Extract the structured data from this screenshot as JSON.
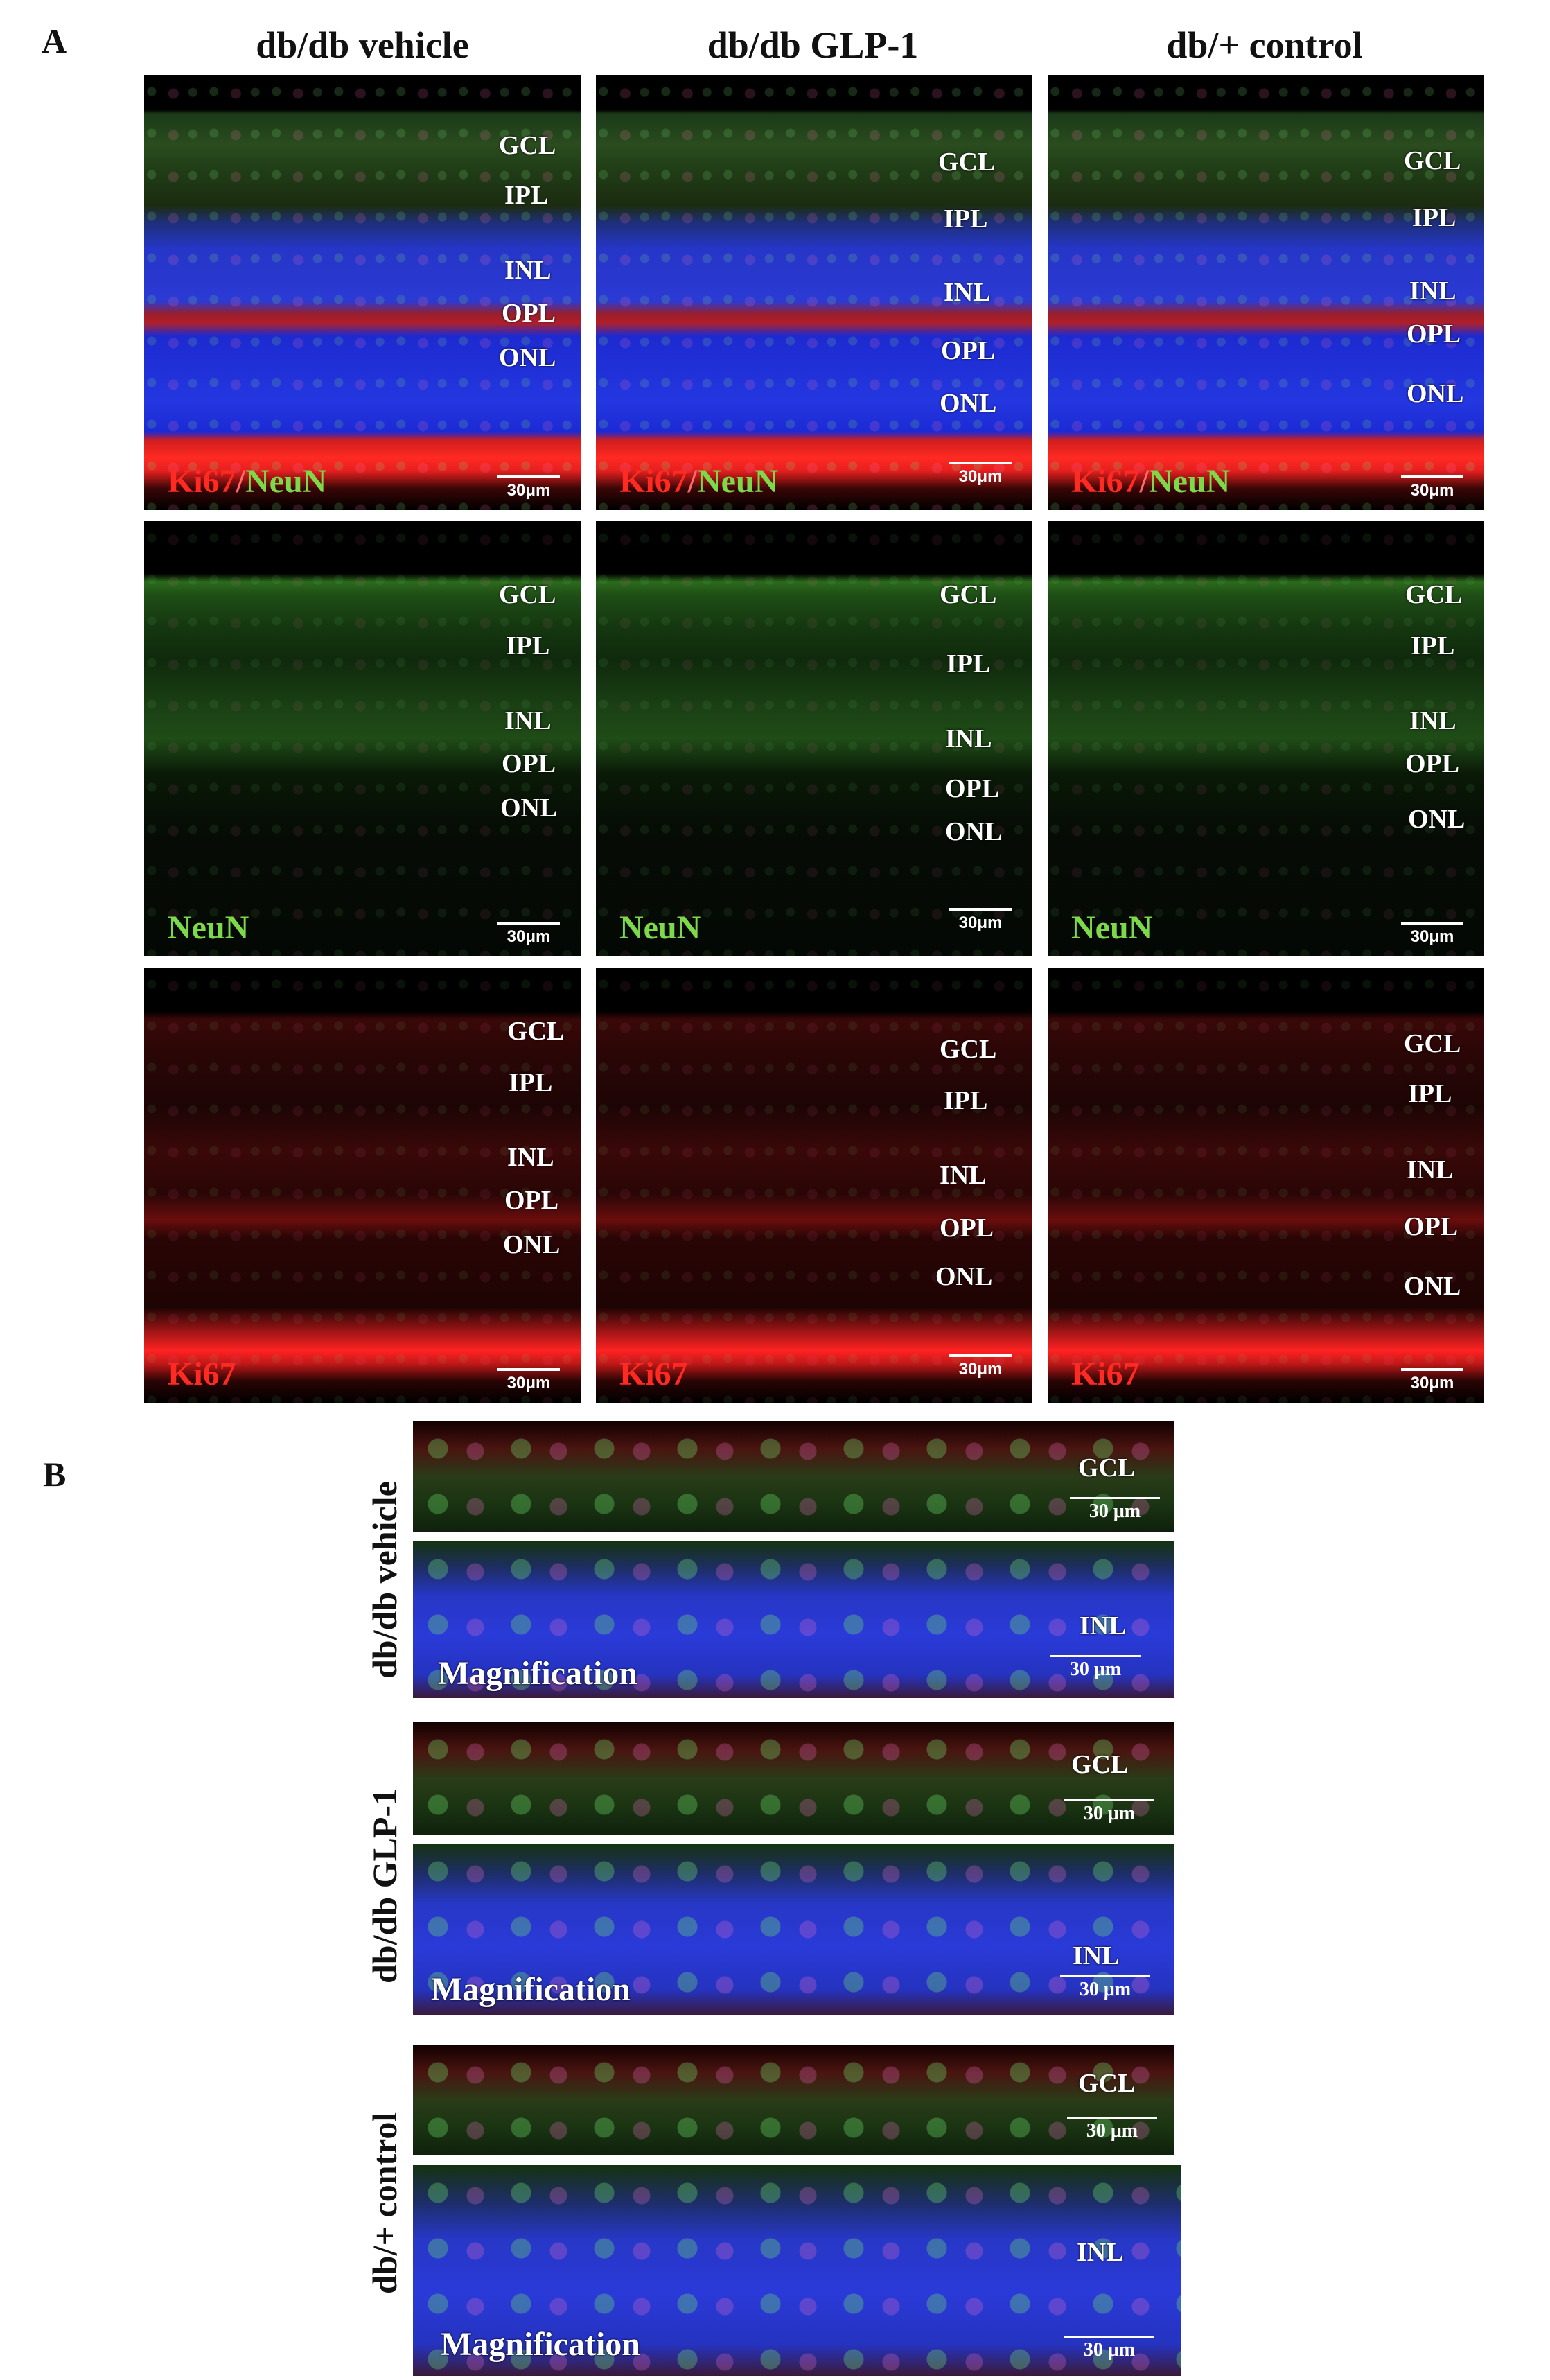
{
  "panel_a": {
    "letter": "A",
    "columns": [
      "db/db vehicle",
      "db/db GLP-1",
      "db/+ control"
    ],
    "layers": {
      "gcl": "GCL",
      "ipl": "IPL",
      "inl": "INL",
      "opl": "OPL",
      "onl": "ONL"
    },
    "stains": {
      "ki67": "Ki67",
      "slash": "/",
      "neun": "NeuN"
    },
    "scale": "30μm"
  },
  "panel_b": {
    "letter": "B",
    "rows": [
      "db/db vehicle",
      "db/db GLP-1",
      "db/+ control"
    ],
    "gcl": "GCL",
    "inl": "INL",
    "magnification": "Magnification",
    "scale": "30 μm"
  },
  "colors": {
    "ki67_red": "#ff2a22",
    "neun_green": "#7dd84a",
    "dapi_blue": "#2a3ad4"
  }
}
